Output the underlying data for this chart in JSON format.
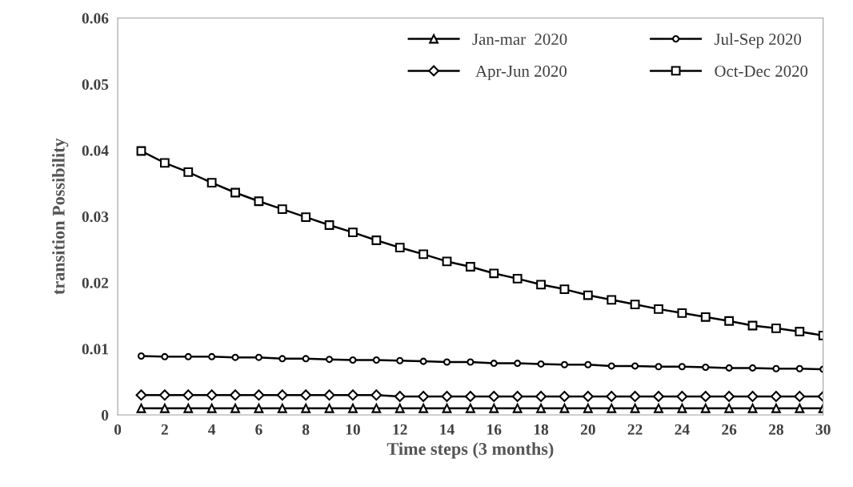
{
  "chart_data": {
    "type": "line",
    "xlabel": "Time steps (3 months)",
    "ylabel": "transition Possibility",
    "x": [
      1,
      2,
      3,
      4,
      5,
      6,
      7,
      8,
      9,
      10,
      11,
      12,
      13,
      14,
      15,
      16,
      17,
      18,
      19,
      20,
      21,
      22,
      23,
      24,
      25,
      26,
      27,
      28,
      29,
      30
    ],
    "series": [
      {
        "name": "Jan-mar  2020",
        "color": "#000000",
        "marker": "triangle",
        "values": [
          0.001,
          0.001,
          0.001,
          0.001,
          0.001,
          0.001,
          0.001,
          0.001,
          0.001,
          0.001,
          0.001,
          0.001,
          0.001,
          0.001,
          0.001,
          0.001,
          0.001,
          0.001,
          0.001,
          0.001,
          0.001,
          0.001,
          0.001,
          0.001,
          0.001,
          0.001,
          0.001,
          0.001,
          0.001,
          0.001
        ]
      },
      {
        "name": " Apr-Jun 2020",
        "color": "#000000",
        "marker": "diamond",
        "values": [
          0.003,
          0.003,
          0.003,
          0.003,
          0.003,
          0.003,
          0.003,
          0.003,
          0.003,
          0.003,
          0.003,
          0.0028,
          0.0028,
          0.0028,
          0.0028,
          0.0028,
          0.0028,
          0.0028,
          0.0028,
          0.0028,
          0.0028,
          0.0028,
          0.0028,
          0.0028,
          0.0028,
          0.0028,
          0.0028,
          0.0028,
          0.0028,
          0.0028
        ]
      },
      {
        "name": "Jul-Sep 2020",
        "color": "#000000",
        "marker": "circle",
        "values": [
          0.0089,
          0.0088,
          0.0088,
          0.0088,
          0.0087,
          0.0087,
          0.0085,
          0.0085,
          0.0084,
          0.0083,
          0.0083,
          0.0082,
          0.0081,
          0.008,
          0.008,
          0.0078,
          0.0078,
          0.0077,
          0.0076,
          0.0076,
          0.0074,
          0.0074,
          0.0073,
          0.0073,
          0.0072,
          0.0071,
          0.0071,
          0.007,
          0.007,
          0.0069
        ]
      },
      {
        "name": "Oct-Dec 2020",
        "color": "#000000",
        "marker": "square",
        "values": [
          0.0399,
          0.0381,
          0.0367,
          0.0351,
          0.0336,
          0.0323,
          0.0311,
          0.0299,
          0.0287,
          0.0276,
          0.0264,
          0.0253,
          0.0243,
          0.0232,
          0.0224,
          0.0214,
          0.0206,
          0.0197,
          0.019,
          0.0181,
          0.0174,
          0.0167,
          0.016,
          0.0154,
          0.0148,
          0.0142,
          0.0135,
          0.0131,
          0.0126,
          0.012
        ]
      }
    ],
    "xlim": [
      0,
      30
    ],
    "xticks": [
      0,
      2,
      4,
      6,
      8,
      10,
      12,
      14,
      16,
      18,
      20,
      22,
      24,
      26,
      28,
      30
    ],
    "ylim": [
      0,
      0.06
    ],
    "yticks": [
      {
        "value": 0,
        "label": "0"
      },
      {
        "value": 0.01,
        "label": "0.01"
      },
      {
        "value": 0.02,
        "label": "0.02"
      },
      {
        "value": 0.03,
        "label": "0.03"
      },
      {
        "value": 0.04,
        "label": "0.04"
      },
      {
        "value": 0.05,
        "label": "0.05"
      },
      {
        "value": 0.06,
        "label": "0.06"
      }
    ],
    "grid": false,
    "legend": "top right",
    "line_style": "solid"
  }
}
